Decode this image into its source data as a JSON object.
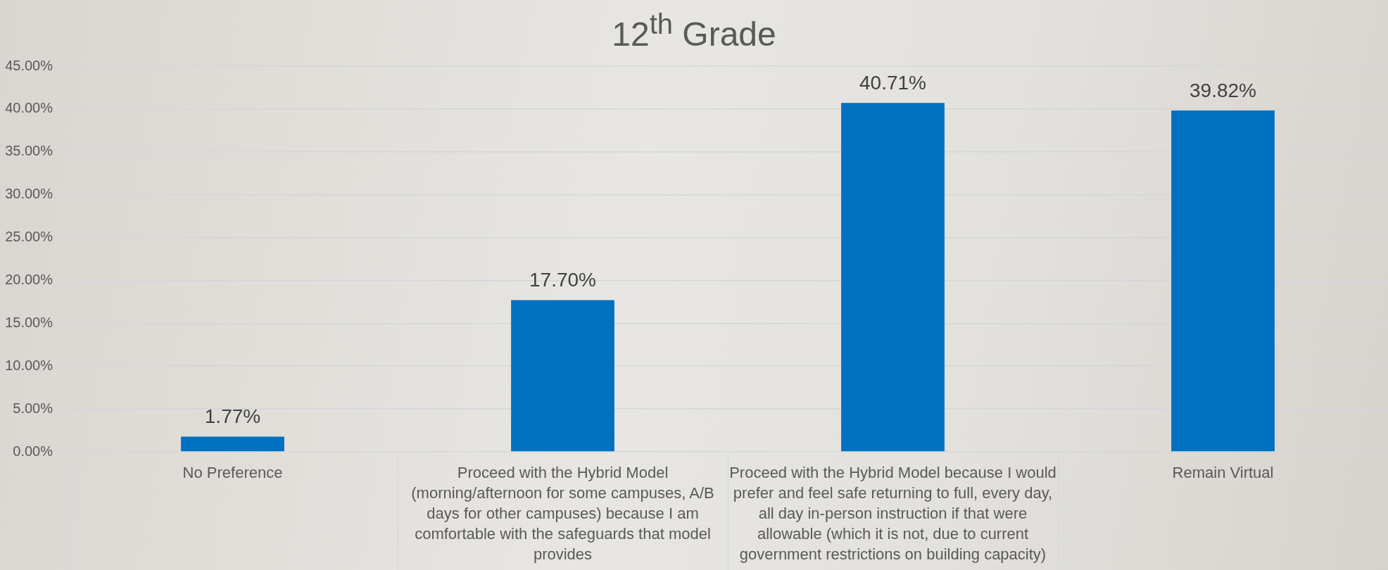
{
  "chart_data": {
    "type": "bar",
    "title": "12$^{th}$ Grade",
    "categories": [
      "No Preference",
      "Proceed with the Hybrid Model (morning/afternoon for some campuses, A/B days for other campuses) because I am comfortable with the safeguards that model provides",
      "Proceed with the Hybrid Model because I would prefer and feel safe returning to full, every day, all day in-person instruction if that were allowable (which it is not, due to current government restrictions on building capacity)",
      "Remain Virtual"
    ],
    "values": [
      1.77,
      17.7,
      40.71,
      39.82
    ],
    "value_labels": [
      "1.77%",
      "17.70%",
      "40.71%",
      "39.82%"
    ],
    "color": "#0070c0",
    "ylim": [
      0,
      45
    ],
    "yticks": [
      {
        "value": 0,
        "label": "0.00%"
      },
      {
        "value": 5,
        "label": "5.00%"
      },
      {
        "value": 10,
        "label": "10.00%"
      },
      {
        "value": 15,
        "label": "15.00%"
      },
      {
        "value": 20,
        "label": "20.00%"
      },
      {
        "value": 25,
        "label": "25.00%"
      },
      {
        "value": 30,
        "label": "30.00%"
      },
      {
        "value": 35,
        "label": "35.00%"
      },
      {
        "value": 40,
        "label": "40.00%"
      },
      {
        "value": 45,
        "label": "45.00%"
      }
    ],
    "grid": "y"
  }
}
